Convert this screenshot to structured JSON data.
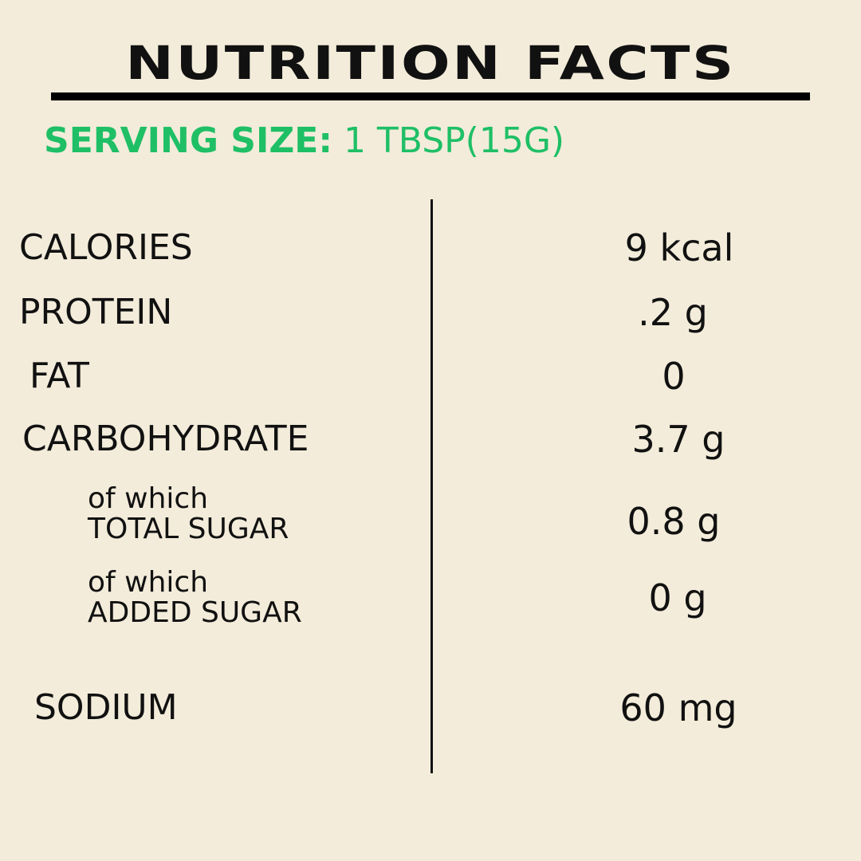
{
  "header": {
    "title": "NUTRITION FACTS"
  },
  "serving": {
    "label": "SERVING SIZE:",
    "value": "1 TBSP(15G)"
  },
  "table": {
    "rows": [
      {
        "label": "CALORIES",
        "value": "9 kcal"
      },
      {
        "label": "PROTEIN",
        "value": ".2 g"
      },
      {
        "label": "FAT",
        "value": "0"
      },
      {
        "label": "CARBOHYDRATE",
        "value": "3.7 g"
      },
      {
        "prefix": "of which",
        "label": "TOTAL SUGAR",
        "value": "0.8 g"
      },
      {
        "prefix": "of which",
        "label": "ADDED SUGAR",
        "value": "0 g"
      },
      {
        "label": "SODIUM",
        "value": "60 mg"
      }
    ]
  }
}
